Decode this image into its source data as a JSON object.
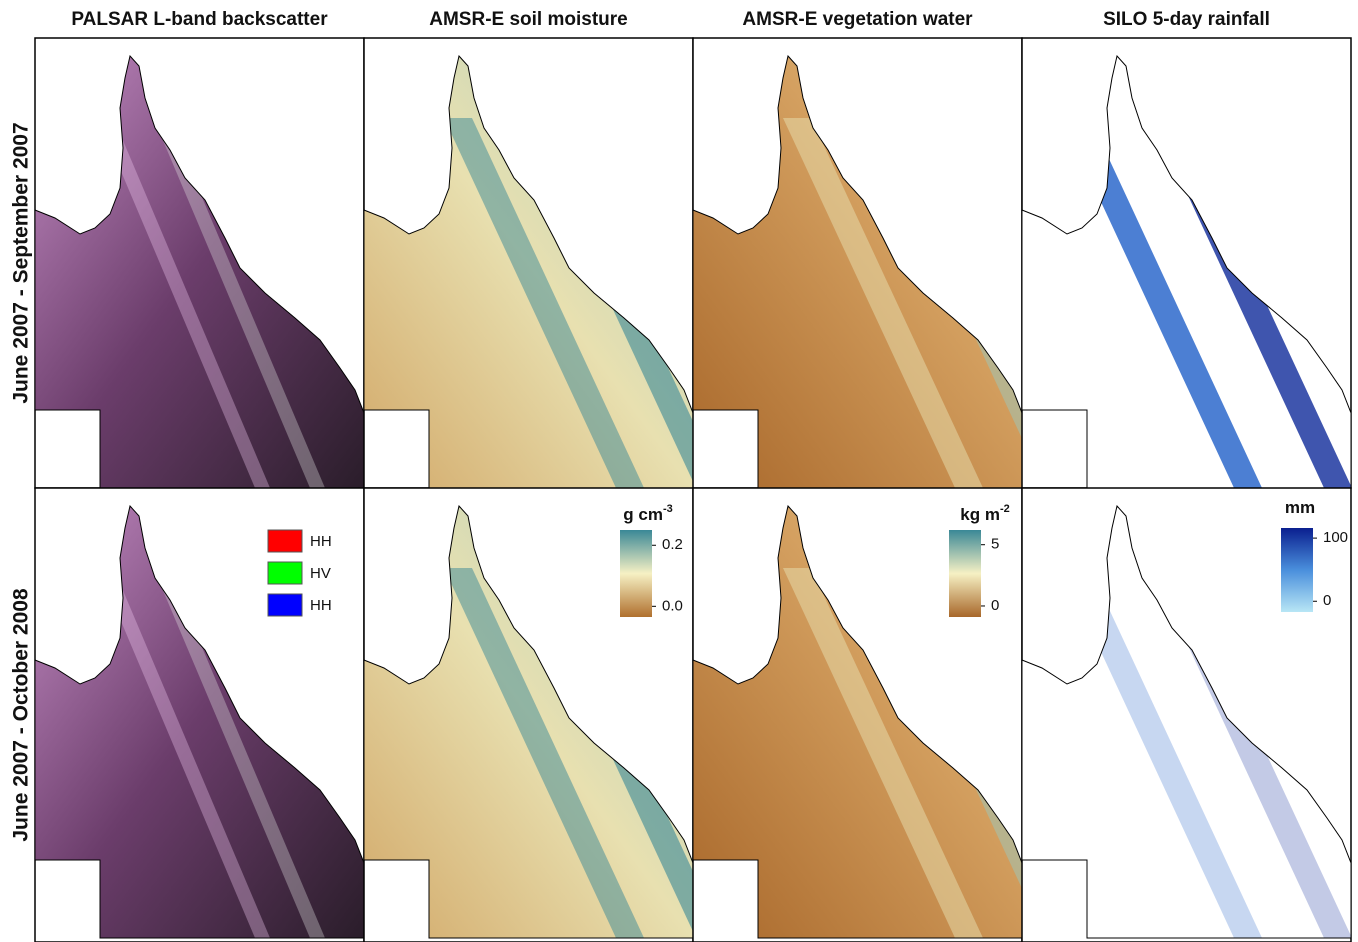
{
  "columns": [
    "PALSAR L-band backscatter",
    "AMSR-E soil moisture",
    "AMSR-E vegetation water",
    "SILO 5-day rainfall"
  ],
  "rows": [
    "June 2007 - September 2007",
    "June 2007 - October 2008"
  ],
  "legend": {
    "items": [
      {
        "label": "HH",
        "color": "#ff0000"
      },
      {
        "label": "HV",
        "color": "#00ff00"
      },
      {
        "label": "HH",
        "color": "#0000ff"
      }
    ]
  },
  "colorbars": [
    {
      "unit": "g cm",
      "unit_sup": "-3",
      "lim": [
        -0.035,
        0.25
      ],
      "ticks": [
        0.2,
        {
          "value": 0,
          "label": "0.0"
        }
      ],
      "colors": [
        "#b0702e",
        "#f6f1c4",
        "#3a8896"
      ]
    },
    {
      "unit": "kg m",
      "unit_sup": "-2",
      "lim": [
        -0.9,
        6.2
      ],
      "ticks": [
        5,
        0
      ],
      "colors": [
        "#a8672a",
        "#f6f1c4",
        "#3a8896"
      ]
    },
    {
      "unit": "mm",
      "lim": [
        -17,
        116
      ],
      "ticks": [
        100,
        0
      ],
      "colors": [
        "#b8e6f5",
        "#4a8fdc",
        "#0a1f8f"
      ]
    }
  ]
}
